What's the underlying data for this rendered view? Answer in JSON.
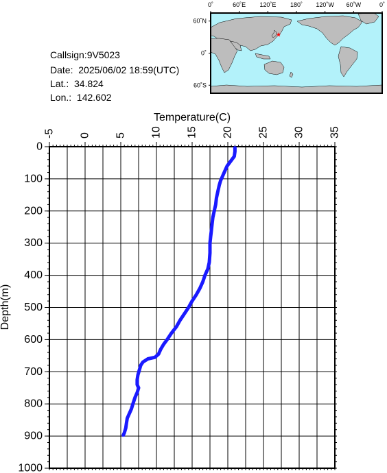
{
  "info": {
    "callsign": "Callsign:9V5023",
    "date": "Date:  2025/06/02 18:59(UTC)",
    "lat": "Lat.:  34.824",
    "lon": "Lon.:  142.602"
  },
  "map": {
    "lon_labels": [
      "0˚",
      "60˚E",
      "120˚E",
      "180˚",
      "120˚W",
      "60˚W",
      "0˚"
    ],
    "lat_labels": [
      "60˚N",
      "0˚",
      "60˚S"
    ],
    "marker": {
      "lat": 34.824,
      "lon": 142.602
    },
    "colors": {
      "ocean": "#b3f2fa",
      "land": "#bdbdbd",
      "marker": "#ff0000"
    }
  },
  "chart_data": {
    "type": "line",
    "xlabel": "Temperature(C)",
    "ylabel": "Depth(m)",
    "xlim": [
      -5,
      35
    ],
    "ylim": [
      1000,
      0
    ],
    "x_ticks": [
      "-5",
      "0",
      "5",
      "10",
      "15",
      "20",
      "25",
      "30",
      "35"
    ],
    "y_ticks": [
      "0",
      "100",
      "200",
      "300",
      "400",
      "500",
      "600",
      "700",
      "800",
      "900",
      "1000"
    ],
    "grid": true,
    "series": [
      {
        "color": "#1a1aff",
        "points": [
          [
            21.0,
            0
          ],
          [
            21.0,
            15
          ],
          [
            20.9,
            30
          ],
          [
            20.4,
            45
          ],
          [
            19.9,
            60
          ],
          [
            19.6,
            75
          ],
          [
            19.3,
            90
          ],
          [
            19.0,
            105
          ],
          [
            18.8,
            120
          ],
          [
            18.6,
            140
          ],
          [
            18.4,
            160
          ],
          [
            18.3,
            180
          ],
          [
            18.1,
            200
          ],
          [
            17.9,
            220
          ],
          [
            17.8,
            240
          ],
          [
            17.7,
            260
          ],
          [
            17.6,
            280
          ],
          [
            17.5,
            300
          ],
          [
            17.5,
            330
          ],
          [
            17.4,
            360
          ],
          [
            17.2,
            380
          ],
          [
            16.8,
            400
          ],
          [
            16.5,
            420
          ],
          [
            16.1,
            440
          ],
          [
            15.6,
            460
          ],
          [
            15.0,
            480
          ],
          [
            14.5,
            500
          ],
          [
            13.9,
            520
          ],
          [
            13.3,
            540
          ],
          [
            12.8,
            560
          ],
          [
            12.1,
            580
          ],
          [
            11.5,
            600
          ],
          [
            11.0,
            615
          ],
          [
            10.6,
            630
          ],
          [
            10.3,
            645
          ],
          [
            9.8,
            655
          ],
          [
            8.8,
            660
          ],
          [
            8.1,
            670
          ],
          [
            7.8,
            680
          ],
          [
            7.6,
            695
          ],
          [
            7.4,
            710
          ],
          [
            7.3,
            725
          ],
          [
            7.3,
            740
          ],
          [
            7.5,
            750
          ],
          [
            7.3,
            765
          ],
          [
            7.0,
            780
          ],
          [
            6.7,
            800
          ],
          [
            6.5,
            815
          ],
          [
            6.2,
            830
          ],
          [
            5.9,
            845
          ],
          [
            5.8,
            860
          ],
          [
            5.7,
            875
          ],
          [
            5.5,
            890
          ],
          [
            5.3,
            900
          ]
        ]
      }
    ]
  }
}
